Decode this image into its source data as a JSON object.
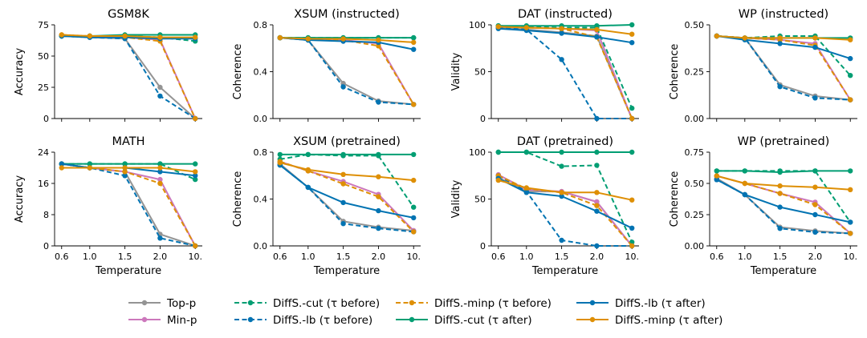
{
  "figure": {
    "xlabel": "Temperature",
    "x_ticks": [
      "0.6",
      "1.0",
      "1.5",
      "2.0",
      "10."
    ]
  },
  "styles": [
    {
      "name": "Top-p",
      "color": "#949494",
      "dash": false
    },
    {
      "name": "Min-p",
      "color": "#cc78bc",
      "dash": false
    },
    {
      "name": "DiffS.-cut (τ before)",
      "color": "#029e73",
      "dash": true
    },
    {
      "name": "DiffS.-lb (τ before)",
      "color": "#0173b2",
      "dash": true
    },
    {
      "name": "DiffS.-minp (τ before)",
      "color": "#de8f05",
      "dash": true
    },
    {
      "name": "DiffS.-cut (τ after)",
      "color": "#029e73",
      "dash": false
    },
    {
      "name": "DiffS.-lb (τ after)",
      "color": "#0173b2",
      "dash": false
    },
    {
      "name": "DiffS.-minp (τ after)",
      "color": "#de8f05",
      "dash": false
    }
  ],
  "legend": {
    "columns": [
      [
        "Top-p",
        "Min-p"
      ],
      [
        "DiffS.-cut (τ before)",
        "DiffS.-lb (τ before)"
      ],
      [
        "DiffS.-minp (τ before)",
        "DiffS.-cut (τ after)"
      ],
      [
        "DiffS.-lb (τ after)",
        "DiffS.-minp (τ after)"
      ]
    ]
  },
  "chart_data": [
    {
      "type": "line",
      "title": "GSM8K",
      "ylabel": "Accuracy",
      "ylim": [
        0,
        75
      ],
      "yticks": [
        0,
        25,
        50,
        75
      ],
      "ytick_labels": [
        "0",
        "25",
        "50",
        "75"
      ],
      "categories": [
        "0.6",
        "1.0",
        "1.5",
        "2.0",
        "10."
      ],
      "series": [
        {
          "name": "Top-p",
          "values": [
            66,
            65,
            64,
            25,
            0
          ]
        },
        {
          "name": "Min-p",
          "values": [
            66,
            66,
            65,
            63,
            0
          ]
        },
        {
          "name": "DiffS.-cut (τ before)",
          "values": [
            66,
            66,
            66,
            65,
            62
          ]
        },
        {
          "name": "DiffS.-lb (τ before)",
          "values": [
            66,
            65,
            64,
            18,
            0
          ]
        },
        {
          "name": "DiffS.-minp (τ before)",
          "values": [
            67,
            66,
            65,
            62,
            0
          ]
        },
        {
          "name": "DiffS.-cut (τ after)",
          "values": [
            66,
            66,
            67,
            67,
            67
          ]
        },
        {
          "name": "DiffS.-lb (τ after)",
          "values": [
            66,
            65,
            65,
            64,
            64
          ]
        },
        {
          "name": "DiffS.-minp (τ after)",
          "values": [
            67,
            66,
            66,
            65,
            65
          ]
        }
      ]
    },
    {
      "type": "line",
      "title": "XSUM (instructed)",
      "ylabel": "Coherence",
      "ylim": [
        0,
        0.8
      ],
      "yticks": [
        0,
        0.4,
        0.8
      ],
      "ytick_labels": [
        "0.0",
        "0.4",
        "0.8"
      ],
      "categories": [
        "0.6",
        "1.0",
        "1.5",
        "2.0",
        "10."
      ],
      "series": [
        {
          "name": "Top-p",
          "values": [
            0.69,
            0.67,
            0.3,
            0.15,
            0.12
          ]
        },
        {
          "name": "Min-p",
          "values": [
            0.69,
            0.68,
            0.67,
            0.64,
            0.12
          ]
        },
        {
          "name": "DiffS.-cut (τ before)",
          "values": [
            0.69,
            0.69,
            0.69,
            0.69,
            0.69
          ]
        },
        {
          "name": "DiffS.-lb (τ before)",
          "values": [
            0.69,
            0.67,
            0.27,
            0.14,
            0.12
          ]
        },
        {
          "name": "DiffS.-minp (τ before)",
          "values": [
            0.69,
            0.68,
            0.67,
            0.62,
            0.12
          ]
        },
        {
          "name": "DiffS.-cut (τ after)",
          "values": [
            0.69,
            0.69,
            0.69,
            0.69,
            0.69
          ]
        },
        {
          "name": "DiffS.-lb (τ after)",
          "values": [
            0.69,
            0.67,
            0.66,
            0.65,
            0.59
          ]
        },
        {
          "name": "DiffS.-minp (τ after)",
          "values": [
            0.69,
            0.68,
            0.68,
            0.67,
            0.65
          ]
        }
      ]
    },
    {
      "type": "line",
      "title": "DAT (instructed)",
      "ylabel": "Validity",
      "ylim": [
        0,
        100
      ],
      "yticks": [
        0,
        50,
        100
      ],
      "ytick_labels": [
        "0",
        "50",
        "100"
      ],
      "categories": [
        "0.6",
        "1.0",
        "1.5",
        "2.0",
        "10."
      ],
      "series": [
        {
          "name": "Top-p",
          "values": [
            97,
            95,
            92,
            88,
            0
          ]
        },
        {
          "name": "Min-p",
          "values": [
            98,
            97,
            96,
            94,
            0
          ]
        },
        {
          "name": "DiffS.-cut (τ before)",
          "values": [
            99,
            98,
            97,
            97,
            11
          ]
        },
        {
          "name": "DiffS.-lb (τ before)",
          "values": [
            97,
            95,
            63,
            0,
            0
          ]
        },
        {
          "name": "DiffS.-minp (τ before)",
          "values": [
            98,
            97,
            96,
            87,
            0
          ]
        },
        {
          "name": "DiffS.-cut (τ after)",
          "values": [
            99,
            99,
            99,
            99,
            100
          ]
        },
        {
          "name": "DiffS.-lb (τ after)",
          "values": [
            96,
            94,
            91,
            87,
            81
          ]
        },
        {
          "name": "DiffS.-minp (τ after)",
          "values": [
            98,
            97,
            96,
            95,
            90
          ]
        }
      ]
    },
    {
      "type": "line",
      "title": "WP (instructed)",
      "ylabel": "Coherence",
      "ylim": [
        0,
        0.5
      ],
      "yticks": [
        0,
        0.25,
        0.5
      ],
      "ytick_labels": [
        "0.00",
        "0.25",
        "0.50"
      ],
      "categories": [
        "0.6",
        "1.0",
        "1.5",
        "2.0",
        "10."
      ],
      "series": [
        {
          "name": "Top-p",
          "values": [
            0.44,
            0.43,
            0.18,
            0.12,
            0.1
          ]
        },
        {
          "name": "Min-p",
          "values": [
            0.44,
            0.43,
            0.42,
            0.4,
            0.1
          ]
        },
        {
          "name": "DiffS.-cut (τ before)",
          "values": [
            0.44,
            0.43,
            0.44,
            0.44,
            0.23
          ]
        },
        {
          "name": "DiffS.-lb (τ before)",
          "values": [
            0.44,
            0.43,
            0.17,
            0.11,
            0.1
          ]
        },
        {
          "name": "DiffS.-minp (τ before)",
          "values": [
            0.44,
            0.43,
            0.42,
            0.39,
            0.1
          ]
        },
        {
          "name": "DiffS.-cut (τ after)",
          "values": [
            0.44,
            0.43,
            0.43,
            0.43,
            0.43
          ]
        },
        {
          "name": "DiffS.-lb (τ after)",
          "values": [
            0.44,
            0.42,
            0.4,
            0.38,
            0.32
          ]
        },
        {
          "name": "DiffS.-minp (τ after)",
          "values": [
            0.44,
            0.43,
            0.43,
            0.43,
            0.42
          ]
        }
      ]
    },
    {
      "type": "line",
      "title": "MATH",
      "ylabel": "Accuracy",
      "ylim": [
        0,
        24
      ],
      "yticks": [
        0,
        8,
        16,
        24
      ],
      "ytick_labels": [
        "0",
        "8",
        "16",
        "24"
      ],
      "categories": [
        "0.6",
        "1.0",
        "1.5",
        "2.0",
        "10."
      ],
      "series": [
        {
          "name": "Top-p",
          "values": [
            21,
            20,
            19,
            3,
            0
          ]
        },
        {
          "name": "Min-p",
          "values": [
            21,
            20,
            19,
            17,
            0
          ]
        },
        {
          "name": "DiffS.-cut (τ before)",
          "values": [
            21,
            21,
            21,
            21,
            17
          ]
        },
        {
          "name": "DiffS.-lb (τ before)",
          "values": [
            21,
            20,
            18,
            2,
            0
          ]
        },
        {
          "name": "DiffS.-minp (τ before)",
          "values": [
            21,
            20,
            19,
            16,
            0
          ]
        },
        {
          "name": "DiffS.-cut (τ after)",
          "values": [
            21,
            21,
            21,
            21,
            21
          ]
        },
        {
          "name": "DiffS.-lb (τ after)",
          "values": [
            21,
            20,
            20,
            19,
            18
          ]
        },
        {
          "name": "DiffS.-minp (τ after)",
          "values": [
            20,
            20,
            20,
            20,
            19
          ]
        }
      ]
    },
    {
      "type": "line",
      "title": "XSUM (pretrained)",
      "ylabel": "Coherence",
      "ylim": [
        0,
        0.8
      ],
      "yticks": [
        0,
        0.4,
        0.8
      ],
      "ytick_labels": [
        "0.0",
        "0.4",
        "0.8"
      ],
      "categories": [
        "0.6",
        "1.0",
        "1.5",
        "2.0",
        "10."
      ],
      "series": [
        {
          "name": "Top-p",
          "values": [
            0.7,
            0.5,
            0.21,
            0.16,
            0.13
          ]
        },
        {
          "name": "Min-p",
          "values": [
            0.72,
            0.64,
            0.55,
            0.44,
            0.13
          ]
        },
        {
          "name": "DiffS.-cut (τ before)",
          "values": [
            0.74,
            0.78,
            0.77,
            0.77,
            0.33
          ]
        },
        {
          "name": "DiffS.-lb (τ before)",
          "values": [
            0.69,
            0.5,
            0.19,
            0.15,
            0.12
          ]
        },
        {
          "name": "DiffS.-minp (τ before)",
          "values": [
            0.72,
            0.64,
            0.53,
            0.42,
            0.12
          ]
        },
        {
          "name": "DiffS.-cut (τ after)",
          "values": [
            0.78,
            0.78,
            0.78,
            0.78,
            0.78
          ]
        },
        {
          "name": "DiffS.-lb (τ after)",
          "values": [
            0.69,
            0.5,
            0.37,
            0.3,
            0.24
          ]
        },
        {
          "name": "DiffS.-minp (τ after)",
          "values": [
            0.71,
            0.65,
            0.61,
            0.59,
            0.56
          ]
        }
      ]
    },
    {
      "type": "line",
      "title": "DAT (pretrained)",
      "ylabel": "Validity",
      "ylim": [
        0,
        100
      ],
      "yticks": [
        0,
        50,
        100
      ],
      "ytick_labels": [
        "0",
        "50",
        "100"
      ],
      "categories": [
        "0.6",
        "1.0",
        "1.5",
        "2.0",
        "10."
      ],
      "series": [
        {
          "name": "Top-p",
          "values": [
            73,
            58,
            58,
            47,
            0
          ]
        },
        {
          "name": "Min-p",
          "values": [
            76,
            60,
            58,
            47,
            0
          ]
        },
        {
          "name": "DiffS.-cut (τ before)",
          "values": [
            100,
            100,
            85,
            86,
            4
          ]
        },
        {
          "name": "DiffS.-lb (τ before)",
          "values": [
            75,
            58,
            6,
            0,
            0
          ]
        },
        {
          "name": "DiffS.-minp (τ before)",
          "values": [
            75,
            61,
            57,
            43,
            0
          ]
        },
        {
          "name": "DiffS.-cut (τ after)",
          "values": [
            100,
            100,
            100,
            100,
            100
          ]
        },
        {
          "name": "DiffS.-lb (τ after)",
          "values": [
            72,
            57,
            53,
            37,
            19
          ]
        },
        {
          "name": "DiffS.-minp (τ after)",
          "values": [
            70,
            62,
            57,
            57,
            49
          ]
        }
      ]
    },
    {
      "type": "line",
      "title": "WP (pretrained)",
      "ylabel": "Coherence",
      "ylim": [
        0,
        0.75
      ],
      "yticks": [
        0,
        0.25,
        0.5,
        0.75
      ],
      "ytick_labels": [
        "0.00",
        "0.25",
        "0.50",
        "0.75"
      ],
      "categories": [
        "0.6",
        "1.0",
        "1.5",
        "2.0",
        "10."
      ],
      "series": [
        {
          "name": "Top-p",
          "values": [
            0.54,
            0.41,
            0.15,
            0.12,
            0.1
          ]
        },
        {
          "name": "Min-p",
          "values": [
            0.56,
            0.5,
            0.42,
            0.35,
            0.1
          ]
        },
        {
          "name": "DiffS.-cut (τ before)",
          "values": [
            0.6,
            0.6,
            0.6,
            0.6,
            0.19
          ]
        },
        {
          "name": "DiffS.-lb (τ before)",
          "values": [
            0.53,
            0.41,
            0.14,
            0.11,
            0.1
          ]
        },
        {
          "name": "DiffS.-minp (τ before)",
          "values": [
            0.56,
            0.5,
            0.42,
            0.33,
            0.1
          ]
        },
        {
          "name": "DiffS.-cut (τ after)",
          "values": [
            0.6,
            0.6,
            0.59,
            0.6,
            0.6
          ]
        },
        {
          "name": "DiffS.-lb (τ after)",
          "values": [
            0.53,
            0.41,
            0.31,
            0.25,
            0.19
          ]
        },
        {
          "name": "DiffS.-minp (τ after)",
          "values": [
            0.56,
            0.5,
            0.48,
            0.47,
            0.45
          ]
        }
      ]
    }
  ]
}
